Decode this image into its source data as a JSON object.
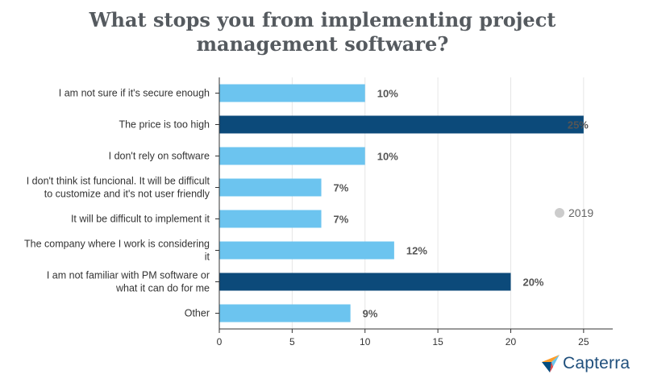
{
  "chart_data": {
    "type": "bar",
    "orientation": "horizontal",
    "title": "What stops you from implementing project management software?",
    "title_lines": [
      "What stops you from implementing project",
      "management software?"
    ],
    "categories": [
      [
        "I am not sure if it's secure enough"
      ],
      [
        "The price is too high"
      ],
      [
        "I don't rely on software"
      ],
      [
        "I don't think ist funcional. It will be difficult",
        "to customize and it's not user friendly"
      ],
      [
        "It will be difficult to implement it"
      ],
      [
        "The company where I work is considering",
        "it"
      ],
      [
        "I am not familiar with PM software or",
        "what it can do for me"
      ],
      [
        "Other"
      ]
    ],
    "series": [
      {
        "name": "2019",
        "values": [
          10,
          25,
          10,
          7,
          7,
          12,
          20,
          9
        ],
        "labels": [
          "10%",
          "25%",
          "10%",
          "7%",
          "7%",
          "12%",
          "20%",
          "9%"
        ]
      }
    ],
    "highlighted": [
      false,
      true,
      false,
      false,
      false,
      false,
      true,
      false
    ],
    "colors": {
      "bar": "#6cc4ef",
      "bar_highlight": "#0c4a7a",
      "legend_dot": "#cccccc",
      "grid": "#e6e6e6"
    },
    "xlim": [
      0,
      27
    ],
    "xticks": [
      0,
      5,
      10,
      15,
      20,
      25
    ],
    "xtick_labels": [
      "0",
      "5",
      "10",
      "15",
      "20",
      "25"
    ],
    "grid": true,
    "legend": {
      "position": "right",
      "label": "2019"
    }
  },
  "logo": {
    "text": "Capterra",
    "icon": "capterra-arrow-icon"
  }
}
